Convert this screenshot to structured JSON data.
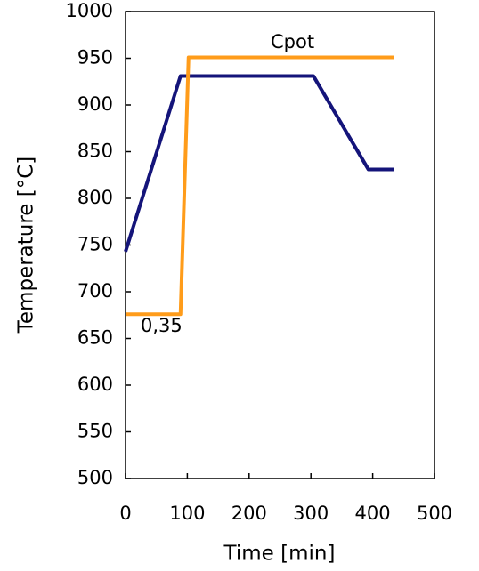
{
  "chart_data": {
    "type": "line",
    "x_label": "Time [min]",
    "y_label": "Temperature [°C]",
    "annotations": [
      "Cpot",
      "0,35"
    ],
    "series": [
      {
        "color": "#14147a",
        "x": [
          0,
          89,
          304,
          393,
          435
        ],
        "values": [
          743,
          931,
          931,
          831,
          831
        ]
      },
      {
        "color": "#ff9c1a",
        "x": [
          0,
          89,
          102,
          435
        ],
        "values": [
          676,
          676,
          951,
          951
        ]
      }
    ],
    "xlim": [
      0,
      500
    ],
    "xticks": [
      0,
      100,
      200,
      300,
      400,
      500
    ],
    "ylim": [
      500,
      1000
    ],
    "yticks": [
      500,
      550,
      600,
      650,
      700,
      750,
      800,
      850,
      900,
      950,
      1000
    ],
    "grid": false
  }
}
